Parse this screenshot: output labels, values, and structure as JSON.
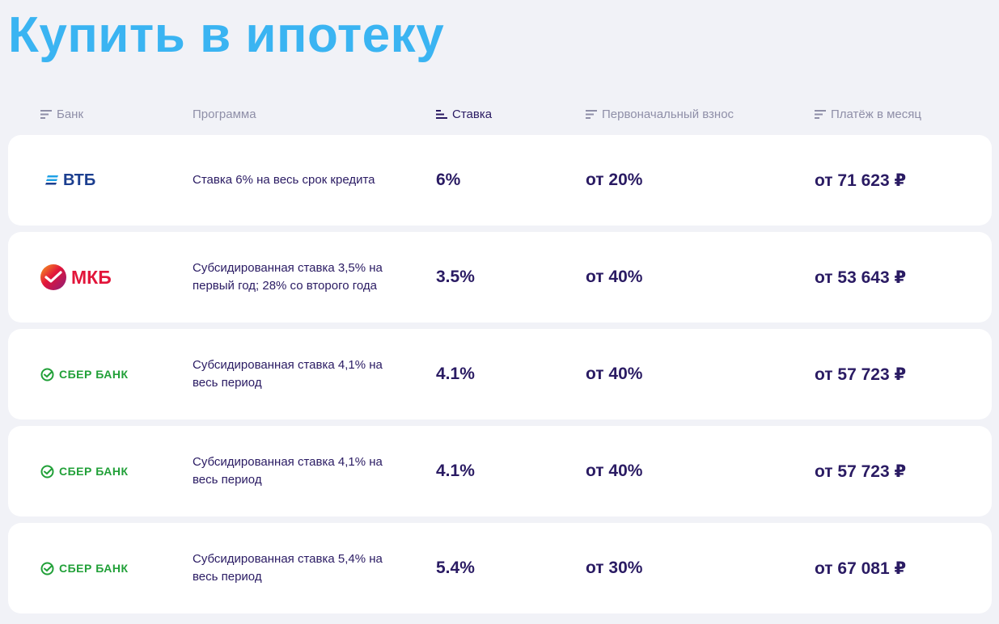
{
  "title": "Купить в ипотеку",
  "columns": {
    "bank": "Банк",
    "program": "Программа",
    "rate": "Ставка",
    "down_payment": "Первоначальный взнос",
    "monthly": "Платёж в месяц"
  },
  "colors": {
    "title": "#3ab4f2",
    "text": "#2a1b63",
    "muted": "#8f8fa8",
    "vtb": "#1b3e8f",
    "mkb": "#e2153a",
    "sber": "#21a038"
  },
  "offers": [
    {
      "bank": "ВТБ",
      "logo": "vtb-logo",
      "program": "Ставка 6% на весь срок кредита",
      "rate": "6%",
      "down_payment": "от 20%",
      "monthly": "от 71 623 ₽"
    },
    {
      "bank": "МКБ",
      "logo": "mkb-logo",
      "program": "Субсидированная ставка 3,5% на первый год; 28% со второго года",
      "rate": "3.5%",
      "down_payment": "от 40%",
      "monthly": "от 53 643 ₽"
    },
    {
      "bank": "СБЕР БАНК",
      "logo": "sber-logo",
      "program": "Субсидированная ставка 4,1% на весь период",
      "rate": "4.1%",
      "down_payment": "от 40%",
      "monthly": "от 57 723 ₽"
    },
    {
      "bank": "СБЕР БАНК",
      "logo": "sber-logo",
      "program": "Субсидированная ставка 4,1% на весь период",
      "rate": "4.1%",
      "down_payment": "от 40%",
      "monthly": "от 57 723 ₽"
    },
    {
      "bank": "СБЕР БАНК",
      "logo": "sber-logo",
      "program": "Субсидированная ставка 5,4% на весь период",
      "rate": "5.4%",
      "down_payment": "от 30%",
      "monthly": "от 67 081 ₽"
    }
  ]
}
